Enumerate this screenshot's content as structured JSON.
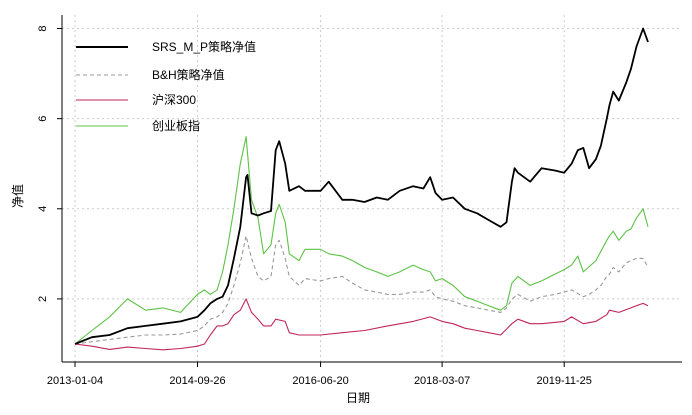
{
  "chart_data": {
    "type": "line",
    "title": "",
    "xlabel": "日期",
    "ylabel": "净值",
    "x_ticks": [
      "2013-01-04",
      "2014-09-26",
      "2016-06-20",
      "2018-03-07",
      "2019-11-25"
    ],
    "y_ticks": [
      2,
      4,
      6,
      8
    ],
    "xlim": [
      "2013-01-04",
      "2021-01-29"
    ],
    "ylim": [
      0.6,
      8.3
    ],
    "grid": true,
    "legend_position": "top-left",
    "series": [
      {
        "name": "SRS_M_P策略净值",
        "color": "#000000",
        "style": "solid",
        "x": [
          "2013-01-04",
          "2013-04-01",
          "2013-07-01",
          "2013-10-01",
          "2014-01-02",
          "2014-04-01",
          "2014-07-01",
          "2014-09-26",
          "2014-11-01",
          "2014-12-01",
          "2015-01-05",
          "2015-02-02",
          "2015-03-02",
          "2015-04-01",
          "2015-05-04",
          "2015-06-03",
          "2015-06-10",
          "2015-07-01",
          "2015-08-03",
          "2015-09-01",
          "2015-10-09",
          "2015-11-02",
          "2015-11-20",
          "2015-12-21",
          "2016-01-11",
          "2016-03-01",
          "2016-04-01",
          "2016-06-20",
          "2016-08-01",
          "2016-10-10",
          "2016-12-01",
          "2017-02-01",
          "2017-04-05",
          "2017-06-01",
          "2017-08-01",
          "2017-10-09",
          "2017-12-01",
          "2018-01-05",
          "2018-02-01",
          "2018-03-07",
          "2018-05-02",
          "2018-07-02",
          "2018-09-03",
          "2018-11-01",
          "2019-01-02",
          "2019-02-01",
          "2019-03-01",
          "2019-03-15",
          "2019-04-01",
          "2019-06-03",
          "2019-08-01",
          "2019-10-08",
          "2019-11-25",
          "2020-01-02",
          "2020-02-03",
          "2020-03-02",
          "2020-04-01",
          "2020-05-06",
          "2020-06-01",
          "2020-07-01",
          "2020-07-15",
          "2020-08-03",
          "2020-09-01",
          "2020-10-09",
          "2020-11-02",
          "2020-12-01",
          "2021-01-04",
          "2021-01-29"
        ],
        "y": [
          1.0,
          1.15,
          1.2,
          1.35,
          1.4,
          1.45,
          1.5,
          1.6,
          1.75,
          1.9,
          2.0,
          2.05,
          2.3,
          2.9,
          3.6,
          4.7,
          4.75,
          3.9,
          3.85,
          3.9,
          3.95,
          5.3,
          5.5,
          5.0,
          4.4,
          4.5,
          4.4,
          4.4,
          4.6,
          4.2,
          4.2,
          4.15,
          4.25,
          4.2,
          4.4,
          4.5,
          4.45,
          4.7,
          4.35,
          4.2,
          4.25,
          4.0,
          3.9,
          3.75,
          3.6,
          3.7,
          4.6,
          4.9,
          4.8,
          4.6,
          4.9,
          4.85,
          4.8,
          5.0,
          5.3,
          5.35,
          4.9,
          5.1,
          5.4,
          6.0,
          6.3,
          6.6,
          6.4,
          6.8,
          7.1,
          7.6,
          8.0,
          7.7
        ]
      },
      {
        "name": "B&H策略净值",
        "color": "#999999",
        "style": "dashed",
        "x": [
          "2013-01-04",
          "2013-04-01",
          "2013-07-01",
          "2013-10-01",
          "2014-01-02",
          "2014-04-01",
          "2014-07-01",
          "2014-09-26",
          "2014-11-01",
          "2014-12-01",
          "2015-01-05",
          "2015-02-02",
          "2015-03-02",
          "2015-04-01",
          "2015-05-04",
          "2015-06-03",
          "2015-07-01",
          "2015-08-03",
          "2015-09-01",
          "2015-10-09",
          "2015-11-02",
          "2015-11-20",
          "2015-12-21",
          "2016-01-11",
          "2016-03-01",
          "2016-04-01",
          "2016-06-20",
          "2016-08-01",
          "2016-10-10",
          "2016-12-01",
          "2017-02-01",
          "2017-04-05",
          "2017-06-01",
          "2017-08-01",
          "2017-10-09",
          "2017-12-01",
          "2018-01-05",
          "2018-02-01",
          "2018-03-07",
          "2018-05-02",
          "2018-07-02",
          "2018-09-03",
          "2018-11-01",
          "2019-01-02",
          "2019-02-01",
          "2019-03-01",
          "2019-04-01",
          "2019-06-03",
          "2019-08-01",
          "2019-10-08",
          "2019-11-25",
          "2020-01-02",
          "2020-03-02",
          "2020-04-01",
          "2020-05-06",
          "2020-06-01",
          "2020-07-01",
          "2020-07-15",
          "2020-08-03",
          "2020-09-01",
          "2020-10-09",
          "2020-11-02",
          "2020-12-01",
          "2021-01-04",
          "2021-01-29"
        ],
        "y": [
          1.0,
          1.05,
          1.1,
          1.15,
          1.2,
          1.2,
          1.22,
          1.3,
          1.4,
          1.55,
          1.6,
          1.7,
          1.9,
          2.3,
          2.8,
          3.4,
          2.9,
          2.5,
          2.4,
          2.5,
          3.2,
          3.3,
          2.9,
          2.5,
          2.3,
          2.45,
          2.4,
          2.45,
          2.5,
          2.35,
          2.2,
          2.15,
          2.1,
          2.1,
          2.15,
          2.15,
          2.2,
          2.05,
          2.0,
          1.95,
          1.85,
          1.8,
          1.75,
          1.7,
          1.8,
          2.0,
          2.1,
          1.95,
          2.05,
          2.1,
          2.15,
          2.2,
          2.05,
          2.1,
          2.2,
          2.3,
          2.5,
          2.55,
          2.7,
          2.6,
          2.8,
          2.85,
          2.9,
          2.9,
          2.7
        ]
      },
      {
        "name": "沪深300",
        "color": "#c0265a",
        "style": "solid",
        "x": [
          "2013-01-04",
          "2013-04-01",
          "2013-07-01",
          "2013-10-01",
          "2014-01-02",
          "2014-04-01",
          "2014-07-01",
          "2014-09-26",
          "2014-11-01",
          "2014-12-01",
          "2015-01-05",
          "2015-02-02",
          "2015-03-02",
          "2015-04-01",
          "2015-05-04",
          "2015-06-03",
          "2015-07-01",
          "2015-08-03",
          "2015-09-01",
          "2015-10-09",
          "2015-11-02",
          "2015-12-21",
          "2016-01-11",
          "2016-03-01",
          "2016-06-20",
          "2016-10-10",
          "2017-02-01",
          "2017-06-01",
          "2017-10-09",
          "2018-01-05",
          "2018-03-07",
          "2018-05-02",
          "2018-07-02",
          "2018-09-03",
          "2018-11-01",
          "2019-01-02",
          "2019-03-01",
          "2019-04-01",
          "2019-06-03",
          "2019-08-01",
          "2019-11-25",
          "2020-01-02",
          "2020-03-02",
          "2020-05-06",
          "2020-07-01",
          "2020-07-15",
          "2020-09-01",
          "2020-11-02",
          "2020-12-01",
          "2021-01-04",
          "2021-01-29"
        ],
        "y": [
          1.0,
          0.95,
          0.88,
          0.93,
          0.9,
          0.87,
          0.9,
          0.95,
          1.0,
          1.2,
          1.4,
          1.4,
          1.45,
          1.65,
          1.75,
          2.0,
          1.7,
          1.55,
          1.4,
          1.4,
          1.55,
          1.5,
          1.25,
          1.2,
          1.2,
          1.25,
          1.3,
          1.4,
          1.5,
          1.6,
          1.5,
          1.45,
          1.35,
          1.3,
          1.25,
          1.2,
          1.45,
          1.55,
          1.45,
          1.45,
          1.5,
          1.6,
          1.45,
          1.5,
          1.65,
          1.75,
          1.7,
          1.8,
          1.85,
          1.9,
          1.85
        ]
      },
      {
        "name": "创业板指",
        "color": "#5cc244",
        "style": "solid",
        "x": [
          "2013-01-04",
          "2013-04-01",
          "2013-07-01",
          "2013-10-01",
          "2014-01-02",
          "2014-04-01",
          "2014-07-01",
          "2014-09-26",
          "2014-11-01",
          "2014-12-01",
          "2015-01-05",
          "2015-02-02",
          "2015-03-02",
          "2015-04-01",
          "2015-05-04",
          "2015-06-03",
          "2015-07-01",
          "2015-08-03",
          "2015-09-01",
          "2015-10-09",
          "2015-11-02",
          "2015-11-20",
          "2015-12-21",
          "2016-01-11",
          "2016-03-01",
          "2016-04-01",
          "2016-06-20",
          "2016-08-01",
          "2016-10-10",
          "2016-12-01",
          "2017-02-01",
          "2017-04-05",
          "2017-06-01",
          "2017-08-01",
          "2017-10-09",
          "2017-12-01",
          "2018-01-05",
          "2018-02-01",
          "2018-03-07",
          "2018-05-02",
          "2018-07-02",
          "2018-09-03",
          "2018-11-01",
          "2019-01-02",
          "2019-02-01",
          "2019-03-01",
          "2019-04-01",
          "2019-06-03",
          "2019-08-01",
          "2019-10-08",
          "2019-11-25",
          "2020-01-02",
          "2020-02-03",
          "2020-03-02",
          "2020-05-06",
          "2020-07-01",
          "2020-07-15",
          "2020-08-03",
          "2020-09-01",
          "2020-10-09",
          "2020-11-02",
          "2020-12-01",
          "2021-01-04",
          "2021-01-29"
        ],
        "y": [
          1.0,
          1.3,
          1.6,
          2.0,
          1.75,
          1.8,
          1.7,
          2.1,
          2.2,
          2.1,
          2.2,
          2.6,
          3.2,
          4.0,
          5.0,
          5.6,
          4.2,
          3.8,
          3.0,
          3.2,
          3.9,
          4.1,
          3.7,
          3.0,
          2.85,
          3.1,
          3.1,
          3.0,
          2.95,
          2.85,
          2.7,
          2.6,
          2.5,
          2.6,
          2.75,
          2.65,
          2.6,
          2.4,
          2.45,
          2.3,
          2.05,
          1.95,
          1.85,
          1.75,
          1.85,
          2.35,
          2.5,
          2.3,
          2.4,
          2.55,
          2.65,
          2.75,
          2.95,
          2.6,
          2.85,
          3.3,
          3.4,
          3.5,
          3.3,
          3.5,
          3.55,
          3.8,
          4.0,
          3.6
        ]
      }
    ]
  }
}
